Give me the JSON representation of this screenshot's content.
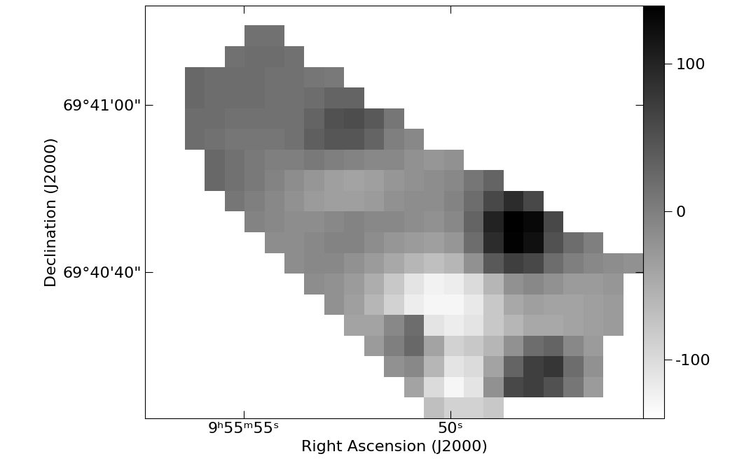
{
  "chart_data": {
    "type": "heatmap",
    "xlabel": "Right Ascension (J2000)",
    "ylabel": "Declination (J2000)",
    "xlim": [
      57.39,
      45.34
    ],
    "ylim": [
      22.51,
      71.88
    ],
    "xticks": [
      {
        "value": 55,
        "label": "9ʰ55ᵐ55ˢ"
      },
      {
        "value": 50,
        "label": "50ˢ"
      }
    ],
    "yticks": [
      {
        "value": 40,
        "label": "69°40'40\""
      },
      {
        "value": 60,
        "label": "69°41'00\""
      }
    ],
    "colorbar": {
      "range": [
        -140,
        139
      ],
      "ticks": [
        -100,
        0,
        100
      ]
    },
    "cells": [
      [
        null,
        null,
        null,
        null,
        null,
        null,
        null,
        null,
        null,
        null,
        null,
        null,
        null,
        null,
        null,
        null,
        null,
        null,
        null,
        null,
        null,
        null,
        null,
        null,
        null
      ],
      [
        null,
        null,
        null,
        null,
        null,
        15,
        15,
        null,
        null,
        null,
        null,
        null,
        null,
        null,
        null,
        null,
        null,
        null,
        null,
        null,
        null,
        null,
        null,
        null,
        null
      ],
      [
        null,
        null,
        null,
        null,
        15,
        20,
        20,
        15,
        null,
        null,
        null,
        null,
        null,
        null,
        null,
        null,
        null,
        null,
        null,
        null,
        null,
        null,
        null,
        null,
        null
      ],
      [
        null,
        null,
        25,
        20,
        20,
        20,
        15,
        15,
        10,
        5,
        null,
        null,
        null,
        null,
        null,
        null,
        null,
        null,
        null,
        null,
        null,
        null,
        null,
        null,
        null
      ],
      [
        null,
        null,
        25,
        20,
        20,
        20,
        15,
        15,
        20,
        30,
        30,
        null,
        null,
        null,
        null,
        null,
        null,
        null,
        null,
        null,
        null,
        null,
        null,
        null,
        null
      ],
      [
        null,
        null,
        20,
        20,
        15,
        15,
        15,
        15,
        30,
        50,
        55,
        40,
        10,
        null,
        null,
        null,
        null,
        null,
        null,
        null,
        null,
        null,
        null,
        null,
        null
      ],
      [
        null,
        null,
        20,
        15,
        10,
        10,
        10,
        15,
        35,
        45,
        45,
        30,
        0,
        -10,
        null,
        null,
        null,
        null,
        null,
        null,
        null,
        null,
        null,
        null,
        null
      ],
      [
        null,
        null,
        null,
        25,
        15,
        5,
        0,
        0,
        5,
        0,
        -5,
        -10,
        -10,
        -20,
        -25,
        -20,
        null,
        null,
        null,
        null,
        null,
        null,
        null,
        null,
        null
      ],
      [
        null,
        null,
        null,
        25,
        15,
        5,
        -5,
        -15,
        -25,
        -35,
        -40,
        -35,
        -25,
        -20,
        -15,
        -10,
        10,
        30,
        null,
        null,
        null,
        null,
        null,
        null,
        null
      ],
      [
        null,
        null,
        null,
        null,
        10,
        0,
        -10,
        -20,
        -30,
        -35,
        -35,
        -30,
        -20,
        -15,
        -15,
        -5,
        20,
        60,
        90,
        60,
        null,
        null,
        null,
        null,
        null
      ],
      [
        null,
        null,
        null,
        null,
        null,
        -5,
        -10,
        -15,
        -15,
        -10,
        -5,
        -10,
        -10,
        -15,
        -20,
        -10,
        30,
        100,
        140,
        130,
        60,
        null,
        null,
        null,
        null
      ],
      [
        null,
        null,
        null,
        null,
        null,
        null,
        -15,
        -15,
        -10,
        -5,
        -5,
        -15,
        -25,
        -30,
        -35,
        -25,
        20,
        90,
        135,
        120,
        50,
        20,
        0,
        null,
        null
      ],
      [
        null,
        null,
        null,
        null,
        null,
        null,
        null,
        -15,
        -10,
        -10,
        -20,
        -30,
        -45,
        -60,
        -70,
        -60,
        -20,
        40,
        70,
        60,
        20,
        0,
        -10,
        -15,
        -20
      ],
      [
        null,
        null,
        null,
        null,
        null,
        null,
        null,
        null,
        -15,
        -20,
        -30,
        -50,
        -80,
        -110,
        -125,
        -120,
        -100,
        -60,
        -20,
        -10,
        -20,
        -30,
        -30,
        -25,
        null
      ],
      [
        null,
        null,
        null,
        null,
        null,
        null,
        null,
        null,
        null,
        -20,
        -35,
        -60,
        -90,
        -120,
        -130,
        -130,
        -115,
        -80,
        -45,
        -35,
        -40,
        -40,
        -35,
        -30,
        null
      ],
      [
        null,
        null,
        null,
        null,
        null,
        null,
        null,
        null,
        null,
        null,
        -40,
        -40,
        -10,
        20,
        -110,
        -120,
        -110,
        -80,
        -60,
        -45,
        -45,
        -40,
        -35,
        -30,
        null
      ],
      [
        null,
        null,
        null,
        null,
        null,
        null,
        null,
        null,
        null,
        null,
        null,
        -30,
        0,
        25,
        -40,
        -90,
        -80,
        -60,
        -20,
        20,
        30,
        -10,
        -30,
        null,
        null
      ],
      [
        null,
        null,
        null,
        null,
        null,
        null,
        null,
        null,
        null,
        null,
        null,
        null,
        -20,
        -10,
        -60,
        -110,
        -100,
        -40,
        30,
        70,
        80,
        20,
        -20,
        null,
        null
      ],
      [
        null,
        null,
        null,
        null,
        null,
        null,
        null,
        null,
        null,
        null,
        null,
        null,
        null,
        -40,
        -100,
        -130,
        -110,
        -20,
        60,
        70,
        50,
        10,
        -30,
        null,
        null
      ],
      [
        null,
        null,
        null,
        null,
        null,
        null,
        null,
        null,
        null,
        null,
        null,
        null,
        null,
        null,
        -70,
        -90,
        -90,
        -80,
        null,
        null,
        null,
        null,
        null,
        null,
        null
      ]
    ]
  }
}
